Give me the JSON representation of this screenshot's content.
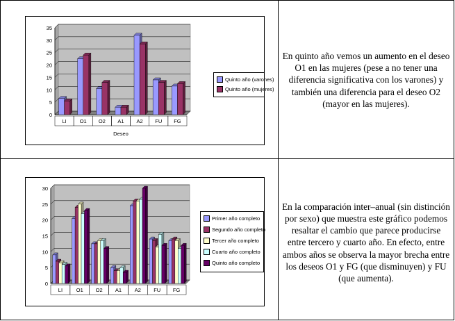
{
  "rows": [
    {
      "chart_legend": [
        {
          "label": "Quinto año (varones)",
          "color": "#9999ff"
        },
        {
          "label": "Quinto año (mujeres)",
          "color": "#993366"
        }
      ],
      "text": "En quinto año vemos un aumento en el deseo O1 en las mujeres (pese a no tener una diferencia significativa con los varones) y también una diferencia para el deseo O2 (mayor en las mujeres)."
    },
    {
      "chart_legend": [
        {
          "label": "Primer año completo",
          "color": "#9999ff"
        },
        {
          "label": "Segundo año completo",
          "color": "#993366"
        },
        {
          "label": "Tercer año completo",
          "color": "#ffffcc"
        },
        {
          "label": "Cuarto año completo",
          "color": "#ccffff"
        },
        {
          "label": "Quinto año completo",
          "color": "#660066"
        }
      ],
      "text": "En la comparación inter–anual (sin distinción por sexo) que muestra este gráfico podemos resaltar el cambio que parece producirse entre tercero y cuarto año. En efecto, entre ambos años se observa la mayor brecha entre los deseos O1 y FG (que disminuyen) y FU (que aumenta)."
    }
  ],
  "chart_data": [
    {
      "type": "bar",
      "categories": [
        "LI",
        "O1",
        "O2",
        "A1",
        "A2",
        "FU",
        "FG"
      ],
      "xlabel": "Deseo",
      "ylabel": "",
      "ylim": [
        0,
        35
      ],
      "yticks": [
        0,
        5,
        10,
        15,
        20,
        25,
        30,
        35
      ],
      "grid": true,
      "legend": "right",
      "series": [
        {
          "name": "Quinto año (varones)",
          "color": "#9999ff",
          "values": [
            6.5,
            22.5,
            10.5,
            3,
            32,
            14,
            11.5
          ]
        },
        {
          "name": "Quinto año (mujeres)",
          "color": "#993366",
          "values": [
            5.5,
            24,
            13,
            3,
            28.5,
            13,
            12.5
          ]
        }
      ]
    },
    {
      "type": "bar",
      "categories": [
        "LI",
        "O1",
        "O2",
        "A1",
        "A2",
        "FU",
        "FG"
      ],
      "xlabel": "",
      "ylabel": "",
      "ylim": [
        0,
        30
      ],
      "yticks": [
        0,
        5,
        10,
        15,
        20,
        25,
        30
      ],
      "grid": true,
      "legend": "right",
      "series": [
        {
          "name": "Primer año completo",
          "color": "#9999ff",
          "values": [
            9,
            20.5,
            12.5,
            5,
            24.5,
            14,
            13.5
          ]
        },
        {
          "name": "Segundo año completo",
          "color": "#993366",
          "values": [
            7,
            24,
            12.5,
            4,
            26,
            13.5,
            14
          ]
        },
        {
          "name": "Tercer año completo",
          "color": "#ffffcc",
          "values": [
            6.5,
            25,
            13.5,
            4,
            26,
            11.5,
            13.5
          ]
        },
        {
          "name": "Cuarto año completo",
          "color": "#ccffff",
          "values": [
            6,
            22,
            13.5,
            5,
            26.5,
            15.5,
            11
          ]
        },
        {
          "name": "Quinto año completo",
          "color": "#660066",
          "values": [
            5.5,
            23,
            11,
            3.5,
            30,
            12,
            12
          ]
        }
      ]
    }
  ]
}
